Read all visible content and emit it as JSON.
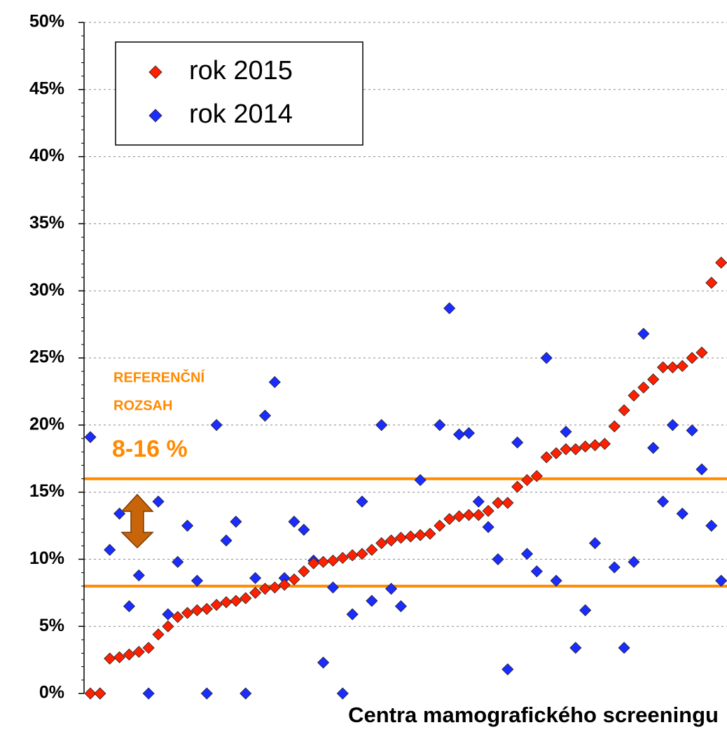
{
  "chart_data": {
    "type": "scatter",
    "x_label": "Centra mamografického screeningu",
    "x": [
      1,
      2,
      3,
      4,
      5,
      6,
      7,
      8,
      9,
      10,
      11,
      12,
      13,
      14,
      15,
      16,
      17,
      18,
      19,
      20,
      21,
      22,
      23,
      24,
      25,
      26,
      27,
      28,
      29,
      30,
      31,
      32,
      33,
      34,
      35,
      36,
      37,
      38,
      39,
      40,
      41,
      42,
      43,
      44,
      45,
      46,
      47,
      48,
      49,
      50,
      51,
      52,
      53,
      54,
      55,
      56,
      57,
      58,
      59,
      60,
      61,
      62,
      63,
      64,
      65,
      66
    ],
    "xlim": [
      0.35,
      66.6
    ],
    "ylim": [
      0,
      50
    ],
    "yticks": [
      {
        "value": 0,
        "label": "0%"
      },
      {
        "value": 5,
        "label": "5%"
      },
      {
        "value": 10,
        "label": "10%"
      },
      {
        "value": 15,
        "label": "15%"
      },
      {
        "value": 20,
        "label": "20%"
      },
      {
        "value": 25,
        "label": "25%"
      },
      {
        "value": 30,
        "label": "30%"
      },
      {
        "value": 35,
        "label": "35%"
      },
      {
        "value": 40,
        "label": "40%"
      },
      {
        "value": 45,
        "label": "45%"
      },
      {
        "value": 50,
        "label": "50%"
      }
    ],
    "grid": true,
    "legend": "upper left",
    "series": [
      {
        "name": "rok 2015",
        "color": "#ff2000",
        "values": [
          0,
          0,
          2.6,
          2.7,
          2.9,
          3.1,
          3.4,
          4.4,
          5.0,
          5.7,
          6.0,
          6.2,
          6.3,
          6.6,
          6.8,
          6.9,
          7.1,
          7.5,
          7.8,
          7.9,
          8.1,
          8.5,
          9.1,
          9.7,
          9.8,
          9.9,
          10.1,
          10.3,
          10.4,
          10.7,
          11.2,
          11.4,
          11.6,
          11.7,
          11.8,
          11.9,
          12.5,
          13.0,
          13.2,
          13.3,
          13.3,
          13.6,
          14.2,
          14.2,
          15.4,
          15.9,
          16.2,
          17.6,
          17.9,
          18.2,
          18.2,
          18.4,
          18.5,
          18.6,
          19.9,
          21.1,
          22.2,
          22.8,
          23.4,
          24.3,
          24.3,
          24.4,
          25.0,
          25.4,
          30.6,
          32.1
        ]
      },
      {
        "name": "rok 2014",
        "color": "#1a2cff",
        "values": [
          19.1,
          0,
          10.7,
          13.4,
          6.5,
          8.8,
          0,
          14.3,
          5.9,
          9.8,
          12.5,
          8.4,
          0,
          20.0,
          11.4,
          12.8,
          0,
          8.6,
          20.7,
          23.2,
          8.6,
          12.8,
          12.2,
          9.9,
          2.3,
          7.9,
          0,
          5.9,
          14.3,
          6.9,
          20.0,
          7.8,
          6.5,
          null,
          15.9,
          null,
          20.0,
          28.7,
          19.3,
          19.4,
          14.3,
          12.4,
          10.0,
          1.8,
          18.7,
          10.4,
          9.1,
          25.0,
          8.4,
          19.5,
          3.4,
          6.2,
          11.2,
          null,
          9.4,
          3.4,
          9.8,
          26.8,
          18.3,
          14.3,
          20.0,
          13.4,
          19.6,
          16.7,
          12.5,
          8.4
        ]
      }
    ],
    "reference_lines": [
      8,
      16
    ],
    "reference_color": "#ff8a00",
    "annotations": [
      "REFERENČNÍ",
      "ROZSAH",
      "8-16 %"
    ]
  }
}
